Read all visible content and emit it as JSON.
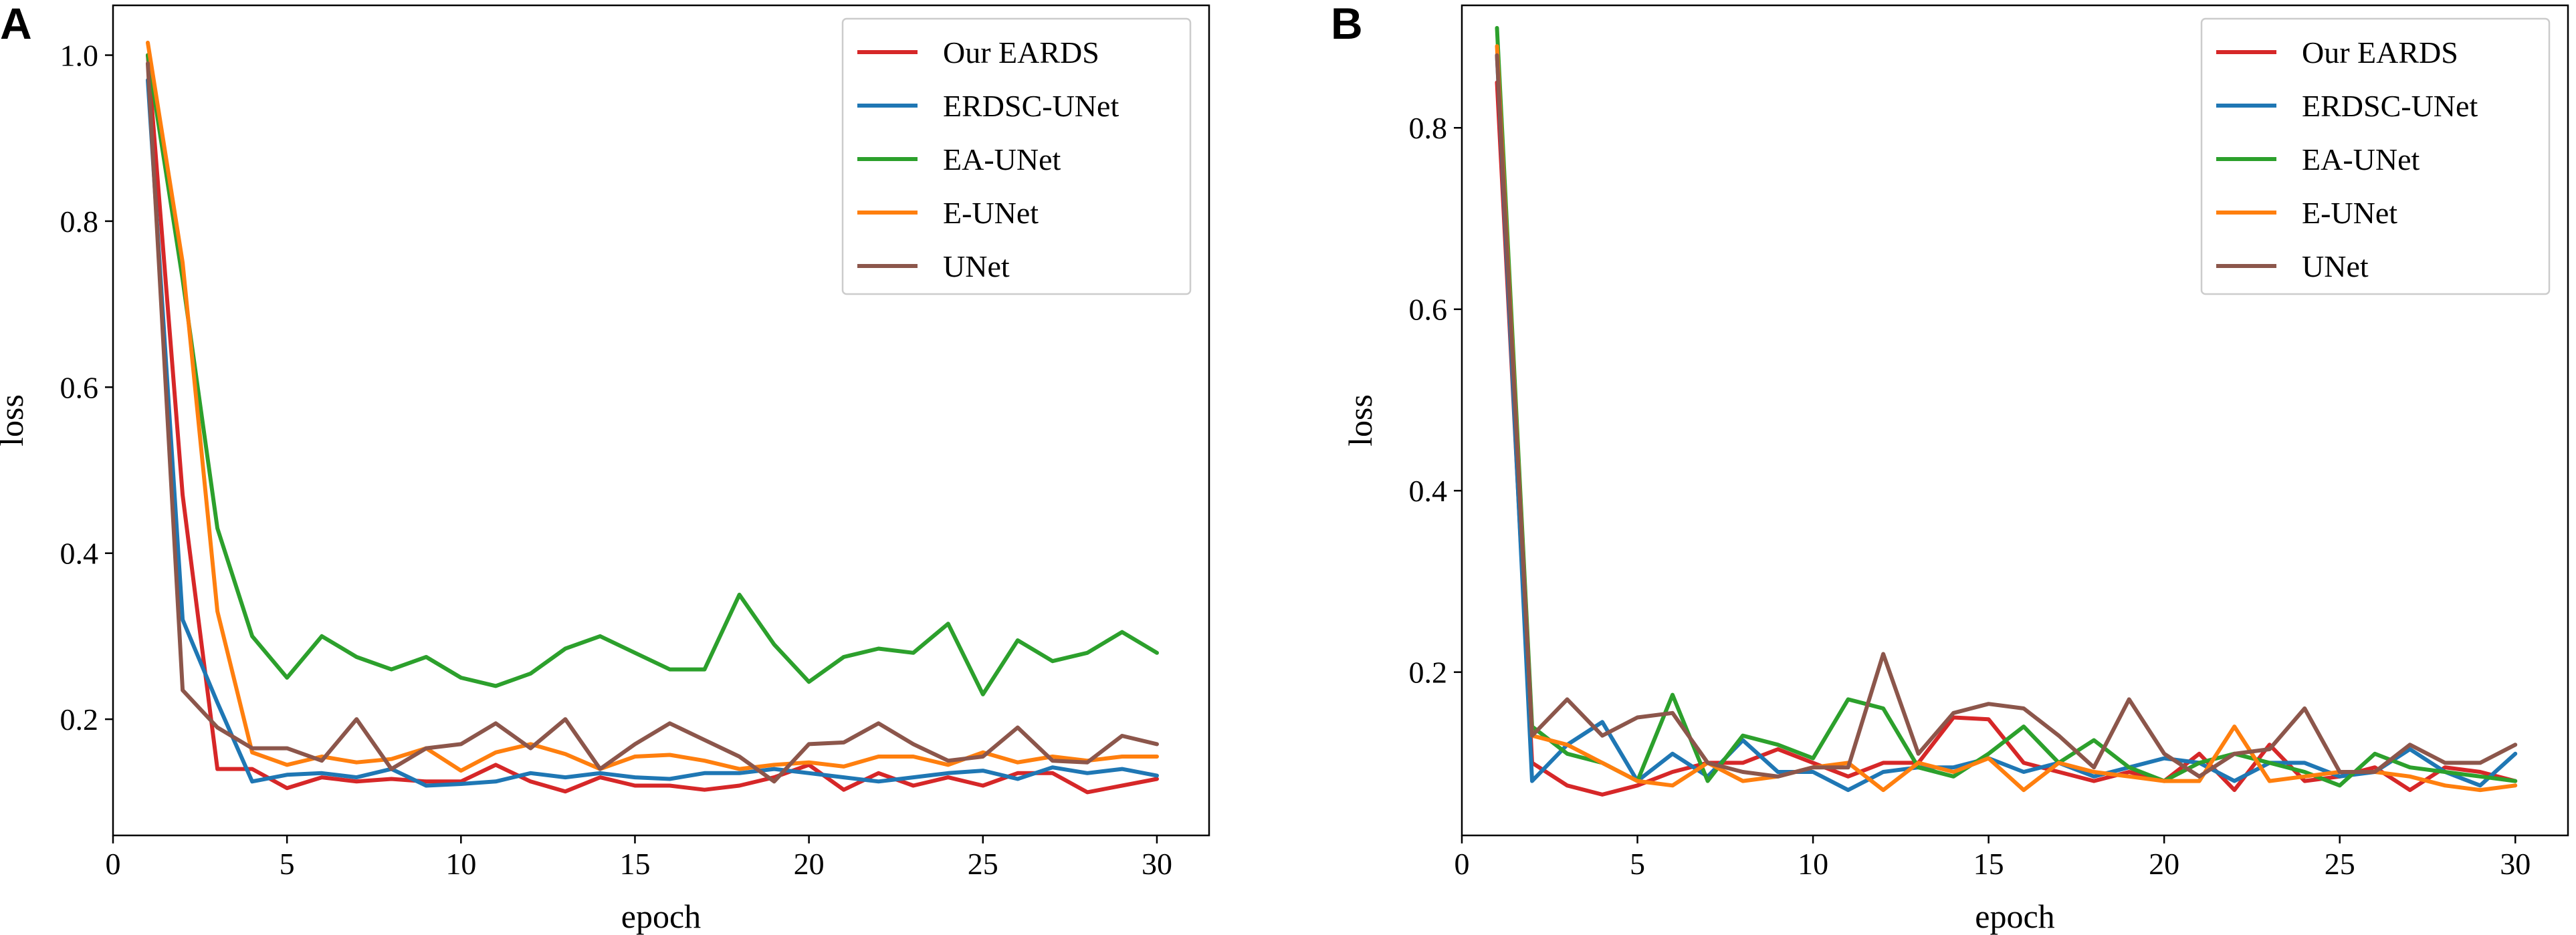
{
  "chart_data": [
    {
      "type": "line",
      "panel": "A",
      "xlabel": "epoch",
      "ylabel": "loss",
      "xlim": [
        0,
        31.5
      ],
      "ylim": [
        0.06,
        1.06
      ],
      "xticks": [
        0,
        5,
        10,
        15,
        20,
        25,
        30
      ],
      "yticks": [
        0.2,
        0.4,
        0.6,
        0.8,
        1.0
      ],
      "legend_position": "top-right",
      "x": [
        1,
        2,
        3,
        4,
        5,
        6,
        7,
        8,
        9,
        10,
        11,
        12,
        13,
        14,
        15,
        16,
        17,
        18,
        19,
        20,
        21,
        22,
        23,
        24,
        25,
        26,
        27,
        28,
        29,
        30
      ],
      "series": [
        {
          "name": "Our EARDS",
          "color": "#d62728",
          "values": [
            1.0,
            0.47,
            0.14,
            0.14,
            0.117,
            0.13,
            0.125,
            0.128,
            0.125,
            0.125,
            0.145,
            0.125,
            0.113,
            0.13,
            0.12,
            0.12,
            0.115,
            0.12,
            0.13,
            0.145,
            0.115,
            0.135,
            0.12,
            0.13,
            0.12,
            0.135,
            0.135,
            0.112,
            0.12,
            0.128
          ]
        },
        {
          "name": "ERDSC-UNet",
          "color": "#1f77b4",
          "values": [
            0.97,
            0.32,
            0.22,
            0.125,
            0.133,
            0.135,
            0.13,
            0.14,
            0.12,
            0.122,
            0.125,
            0.135,
            0.13,
            0.135,
            0.13,
            0.128,
            0.135,
            0.135,
            0.14,
            0.135,
            0.13,
            0.125,
            0.13,
            0.135,
            0.138,
            0.128,
            0.142,
            0.135,
            0.14,
            0.132
          ]
        },
        {
          "name": "EA-UNet",
          "color": "#2ca02c",
          "values": [
            1.0,
            0.73,
            0.43,
            0.3,
            0.25,
            0.3,
            0.275,
            0.26,
            0.275,
            0.25,
            0.24,
            0.255,
            0.285,
            0.3,
            0.28,
            0.26,
            0.26,
            0.35,
            0.29,
            0.245,
            0.275,
            0.285,
            0.28,
            0.315,
            0.23,
            0.295,
            0.27,
            0.28,
            0.305,
            0.28
          ]
        },
        {
          "name": "E-UNet",
          "color": "#ff7f0e",
          "values": [
            1.015,
            0.75,
            0.33,
            0.16,
            0.145,
            0.155,
            0.148,
            0.152,
            0.165,
            0.138,
            0.16,
            0.17,
            0.158,
            0.14,
            0.155,
            0.157,
            0.15,
            0.14,
            0.145,
            0.148,
            0.143,
            0.155,
            0.155,
            0.145,
            0.16,
            0.148,
            0.155,
            0.15,
            0.155,
            0.155
          ]
        },
        {
          "name": "UNet",
          "color": "#8c564b",
          "values": [
            0.99,
            0.235,
            0.19,
            0.165,
            0.165,
            0.15,
            0.2,
            0.14,
            0.165,
            0.17,
            0.195,
            0.165,
            0.2,
            0.14,
            0.17,
            0.195,
            0.175,
            0.155,
            0.125,
            0.17,
            0.172,
            0.195,
            0.17,
            0.15,
            0.155,
            0.19,
            0.15,
            0.148,
            0.18,
            0.17
          ]
        }
      ]
    },
    {
      "type": "line",
      "panel": "B",
      "xlabel": "epoch",
      "ylabel": "loss",
      "xlim": [
        0,
        31.5
      ],
      "ylim": [
        0.02,
        0.935
      ],
      "xticks": [
        0,
        5,
        10,
        15,
        20,
        25,
        30
      ],
      "yticks": [
        0.2,
        0.4,
        0.6,
        0.8
      ],
      "legend_position": "top-right",
      "x": [
        1,
        2,
        3,
        4,
        5,
        6,
        7,
        8,
        9,
        10,
        11,
        12,
        13,
        14,
        15,
        16,
        17,
        18,
        19,
        20,
        21,
        22,
        23,
        24,
        25,
        26,
        27,
        28,
        29,
        30
      ],
      "series": [
        {
          "name": "Our EARDS",
          "color": "#d62728",
          "values": [
            0.85,
            0.1,
            0.075,
            0.065,
            0.075,
            0.09,
            0.1,
            0.1,
            0.115,
            0.1,
            0.085,
            0.1,
            0.1,
            0.15,
            0.148,
            0.1,
            0.09,
            0.08,
            0.09,
            0.08,
            0.11,
            0.07,
            0.12,
            0.08,
            0.085,
            0.095,
            0.07,
            0.095,
            0.09,
            0.08
          ]
        },
        {
          "name": "ERDSC-UNet",
          "color": "#1f77b4",
          "values": [
            0.88,
            0.08,
            0.12,
            0.145,
            0.08,
            0.11,
            0.085,
            0.125,
            0.09,
            0.09,
            0.07,
            0.09,
            0.095,
            0.095,
            0.105,
            0.09,
            0.1,
            0.085,
            0.095,
            0.105,
            0.1,
            0.08,
            0.1,
            0.1,
            0.085,
            0.09,
            0.115,
            0.09,
            0.075,
            0.11
          ]
        },
        {
          "name": "EA-UNet",
          "color": "#2ca02c",
          "values": [
            0.91,
            0.14,
            0.11,
            0.1,
            0.08,
            0.175,
            0.08,
            0.13,
            0.12,
            0.105,
            0.17,
            0.16,
            0.095,
            0.085,
            0.11,
            0.14,
            0.1,
            0.125,
            0.095,
            0.08,
            0.1,
            0.11,
            0.1,
            0.09,
            0.075,
            0.11,
            0.095,
            0.09,
            0.085,
            0.08
          ]
        },
        {
          "name": "E-UNet",
          "color": "#ff7f0e",
          "values": [
            0.89,
            0.13,
            0.12,
            0.1,
            0.08,
            0.075,
            0.1,
            0.08,
            0.085,
            0.095,
            0.1,
            0.07,
            0.1,
            0.09,
            0.105,
            0.07,
            0.1,
            0.09,
            0.085,
            0.08,
            0.08,
            0.14,
            0.08,
            0.085,
            0.09,
            0.09,
            0.085,
            0.075,
            0.07,
            0.075
          ]
        },
        {
          "name": "UNet",
          "color": "#8c564b",
          "values": [
            0.88,
            0.13,
            0.17,
            0.13,
            0.15,
            0.155,
            0.1,
            0.09,
            0.085,
            0.095,
            0.095,
            0.22,
            0.11,
            0.155,
            0.165,
            0.16,
            0.13,
            0.095,
            0.17,
            0.11,
            0.085,
            0.11,
            0.115,
            0.16,
            0.09,
            0.09,
            0.12,
            0.1,
            0.1,
            0.12
          ]
        }
      ]
    }
  ]
}
